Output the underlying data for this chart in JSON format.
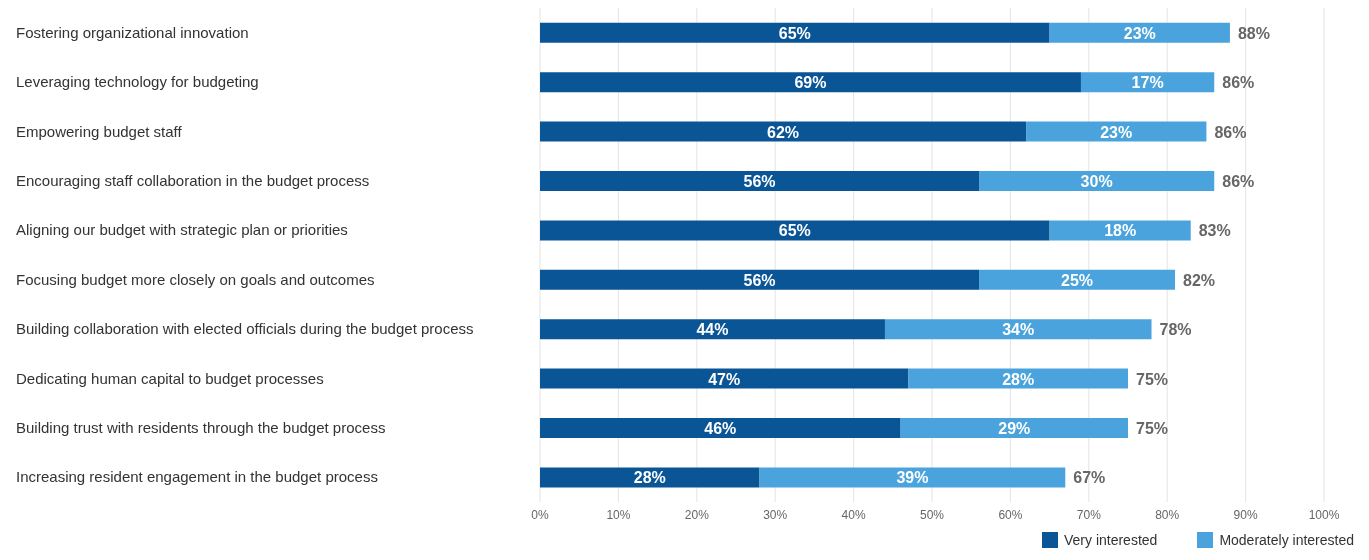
{
  "chart_data": {
    "type": "bar",
    "orientation": "horizontal",
    "stacked": true,
    "categories": [
      "Fostering organizational innovation",
      "Leveraging technology for budgeting",
      "Empowering budget staff",
      "Encouraging staff collaboration in the budget process",
      "Aligning our budget with strategic plan or priorities",
      "Focusing budget more closely on goals and outcomes",
      "Building collaboration with elected officials during the budget process",
      "Dedicating human capital to budget processes",
      "Building trust with residents through the budget process",
      "Increasing resident engagement in the budget process"
    ],
    "series": [
      {
        "name": "Very interested",
        "color": "#0a5596",
        "values": [
          65,
          69,
          62,
          56,
          65,
          56,
          44,
          47,
          46,
          28
        ],
        "value_labels": [
          "65%",
          "69%",
          "62%",
          "56%",
          "65%",
          "56%",
          "44%",
          "47%",
          "46%",
          "28%"
        ]
      },
      {
        "name": "Moderately interested",
        "color": "#4aa3dc",
        "values": [
          23,
          17,
          23,
          30,
          18,
          25,
          34,
          28,
          29,
          39
        ],
        "value_labels": [
          "23%",
          "17%",
          "23%",
          "30%",
          "18%",
          "25%",
          "34%",
          "28%",
          "29%",
          "39%"
        ]
      }
    ],
    "totals": [
      "88%",
      "86%",
      "86%",
      "86%",
      "83%",
      "82%",
      "78%",
      "75%",
      "75%",
      "67%"
    ],
    "xlim": [
      0,
      100
    ],
    "xticks": [
      {
        "value": 0,
        "label": "0%"
      },
      {
        "value": 10,
        "label": "10%"
      },
      {
        "value": 20,
        "label": "20%"
      },
      {
        "value": 30,
        "label": "30%"
      },
      {
        "value": 40,
        "label": "40%"
      },
      {
        "value": 50,
        "label": "50%"
      },
      {
        "value": 60,
        "label": "60%"
      },
      {
        "value": 70,
        "label": "70%"
      },
      {
        "value": 80,
        "label": "80%"
      },
      {
        "value": 90,
        "label": "90%"
      },
      {
        "value": 100,
        "label": "100%"
      }
    ],
    "grid": "x",
    "legend": "bottom"
  }
}
